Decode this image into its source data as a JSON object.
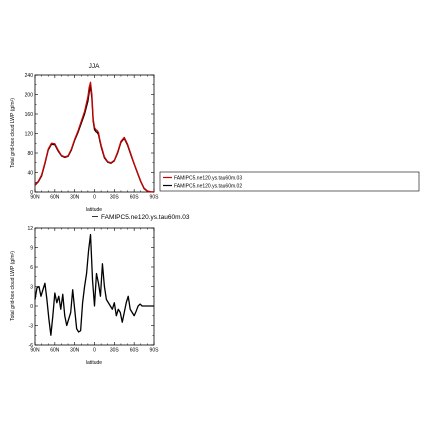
{
  "chart_data": [
    {
      "type": "line",
      "title": "JJA",
      "xlabel": "latitude",
      "ylabel": "Total grid-box cloud LWP (g/m²)",
      "x_tick_labels": [
        "90N",
        "60N",
        "30N",
        "0",
        "30S",
        "60S",
        "90S"
      ],
      "x_tick_values": [
        90,
        60,
        30,
        0,
        -30,
        -60,
        -90
      ],
      "xlim": [
        90,
        -90
      ],
      "ylim": [
        0,
        240
      ],
      "y_ticks": [
        0,
        40,
        80,
        120,
        160,
        200,
        240
      ],
      "grid": false,
      "legend_position": "right",
      "x": [
        90,
        85,
        80,
        75,
        70,
        65,
        60,
        55,
        50,
        45,
        40,
        35,
        30,
        25,
        20,
        15,
        10,
        8,
        6,
        4,
        2,
        0,
        -2,
        -4,
        -6,
        -8,
        -10,
        -15,
        -20,
        -25,
        -30,
        -35,
        -40,
        -45,
        -50,
        -55,
        -60,
        -65,
        -70,
        -75,
        -80,
        -85,
        -90
      ],
      "series": [
        {
          "name": "FAMIPC5.ne120.ys.tau60m.03",
          "color": "#cc0000",
          "values": [
            15,
            22,
            35,
            60,
            88,
            100,
            99,
            86,
            75,
            72,
            74,
            88,
            108,
            125,
            145,
            165,
            195,
            215,
            225,
            200,
            150,
            132,
            128,
            126,
            122,
            108,
            96,
            72,
            62,
            60,
            65,
            82,
            104,
            112,
            98,
            78,
            58,
            40,
            22,
            8,
            2,
            0.5,
            0
          ]
        },
        {
          "name": "FAMIPC5.ne120.ys.tau60m.02",
          "color": "#000000",
          "values": [
            14,
            21,
            33,
            58,
            86,
            98,
            97,
            84,
            74,
            71,
            73,
            86,
            106,
            122,
            141,
            160,
            186,
            205,
            217,
            192,
            145,
            128,
            124,
            122,
            118,
            105,
            93,
            70,
            61,
            59,
            64,
            80,
            102,
            110,
            96,
            76,
            57,
            39,
            21,
            7,
            1.5,
            0.3,
            0
          ]
        }
      ]
    },
    {
      "type": "line",
      "title": "",
      "xlabel": "latitude",
      "ylabel": "Total grid-box cloud LWP (g/m²)",
      "x_tick_labels": [
        "90N",
        "60N",
        "30N",
        "0",
        "30S",
        "60S",
        "90S"
      ],
      "x_tick_values": [
        90,
        60,
        30,
        0,
        -30,
        -60,
        -90
      ],
      "xlim": [
        90,
        -90
      ],
      "ylim": [
        -6,
        12
      ],
      "y_ticks": [
        -6,
        -3,
        0,
        3,
        6,
        9,
        12
      ],
      "grid": false,
      "x": [
        90,
        87,
        84,
        81,
        78,
        75,
        72,
        69,
        66,
        63,
        60,
        57,
        54,
        51,
        48,
        45,
        42,
        39,
        36,
        33,
        30,
        27,
        24,
        21,
        18,
        15,
        12,
        9,
        6,
        3,
        0,
        -3,
        -6,
        -9,
        -12,
        -15,
        -18,
        -21,
        -24,
        -27,
        -30,
        -33,
        -36,
        -39,
        -42,
        -45,
        -48,
        -51,
        -54,
        -57,
        -60,
        -63,
        -66,
        -69,
        -72,
        -75,
        -78,
        -81,
        -84,
        -87,
        -90
      ],
      "series": [
        {
          "name": "FAMIPC5.ne120.ys.tau60m.03",
          "color": "#000000",
          "values": [
            1.0,
            2.8,
            3.0,
            1.5,
            2.5,
            3.5,
            1.0,
            -2.0,
            -4.5,
            -1.5,
            2.0,
            0.5,
            1.5,
            -0.5,
            1.8,
            -1.5,
            -3.0,
            -2.0,
            -1.0,
            2.5,
            -0.5,
            -3.5,
            -4.0,
            -3.8,
            0.5,
            3.0,
            5.0,
            8.5,
            11.0,
            4.0,
            0.0,
            5.0,
            3.5,
            1.5,
            6.5,
            3.0,
            1.0,
            0.5,
            0.0,
            -0.5,
            0.5,
            -1.5,
            -0.5,
            -1.0,
            -2.5,
            -1.0,
            0.5,
            1.5,
            -0.5,
            -1.0,
            -1.5,
            -0.8,
            0.0,
            0.3,
            0.0,
            0.0,
            0.0,
            0.0,
            0.0,
            0.0,
            0.0
          ]
        }
      ]
    }
  ]
}
